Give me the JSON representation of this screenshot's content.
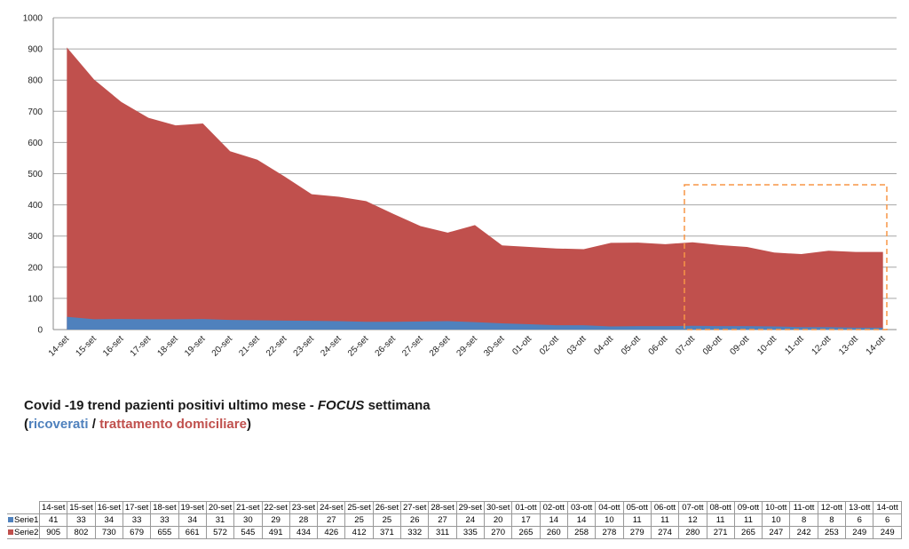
{
  "chart_data": {
    "type": "area",
    "title_parts": [
      "Covid -19 trend pazienti positivi ultimo mese -",
      "FOCUS",
      "settimana"
    ],
    "subtitle_parts": [
      "(",
      "ricoverati",
      "/",
      "trattamento domiciliare",
      ")"
    ],
    "categories": [
      "14-set",
      "15-set",
      "16-set",
      "17-set",
      "18-set",
      "19-set",
      "20-set",
      "21-set",
      "22-set",
      "23-set",
      "24-set",
      "25-set",
      "26-set",
      "27-set",
      "28-set",
      "29-set",
      "30-set",
      "01-ott",
      "02-ott",
      "03-ott",
      "04-ott",
      "05-ott",
      "06-ott",
      "07-ott",
      "08-ott",
      "09-ott",
      "10-ott",
      "11-ott",
      "12-ott",
      "13-ott",
      "14-ott"
    ],
    "series": [
      {
        "name": "Serie1",
        "color": "#4f81bd",
        "values": [
          41,
          33,
          34,
          33,
          33,
          34,
          31,
          30,
          29,
          28,
          27,
          25,
          25,
          26,
          27,
          24,
          20,
          17,
          14,
          14,
          10,
          11,
          11,
          12,
          11,
          11,
          10,
          8,
          8,
          6,
          6
        ]
      },
      {
        "name": "Serie2",
        "color": "#c0504d",
        "values": [
          905,
          802,
          730,
          679,
          655,
          661,
          572,
          545,
          491,
          434,
          426,
          412,
          371,
          332,
          311,
          335,
          270,
          265,
          260,
          258,
          278,
          279,
          274,
          280,
          271,
          265,
          247,
          242,
          253,
          249,
          249
        ]
      }
    ],
    "ylim": [
      0,
      1000
    ],
    "yticks": [
      0,
      100,
      200,
      300,
      400,
      500,
      600,
      700,
      800,
      900,
      1000
    ],
    "grid": true
  }
}
